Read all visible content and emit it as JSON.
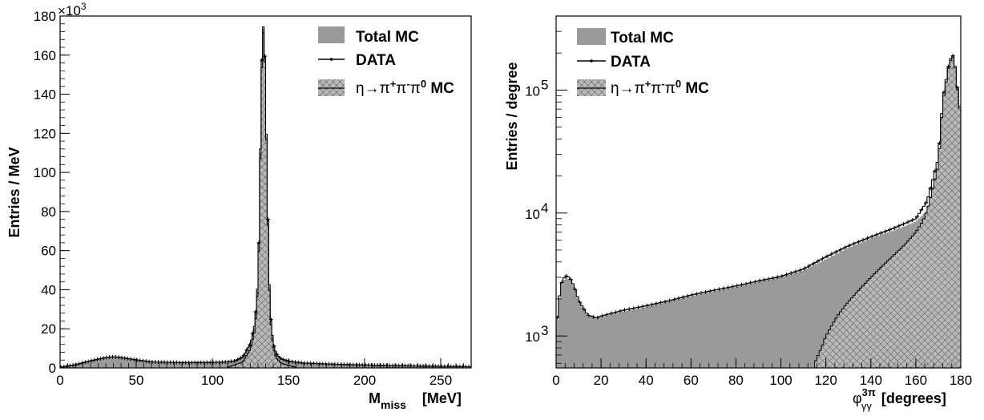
{
  "colors": {
    "total_mc": "#9a9a9a",
    "data": "#000000",
    "eta_mc": "#6e6e6e",
    "frame": "#000000"
  },
  "chart_data": [
    {
      "type": "bar",
      "xlabel_main": "M",
      "xlabel_sub": "miss",
      "xlabel_unit": "[MeV]",
      "ylabel": "Entries / MeV",
      "exponent_label": "×10",
      "exponent_power": "3",
      "xlim": [
        0,
        270
      ],
      "ylim": [
        0,
        180
      ],
      "yscale": "linear",
      "x_ticks": [
        0,
        50,
        100,
        150,
        200,
        250
      ],
      "y_ticks": [
        0,
        20,
        40,
        60,
        80,
        100,
        120,
        140,
        160,
        180
      ],
      "legend": {
        "placement": "top-right",
        "total_label": "Total MC",
        "data_label": "DATA",
        "eta_label_parts": {
          "eta": "η",
          "arrow": "→",
          "pi": "π",
          "plus": "+",
          "minus": "-",
          "zero": "0",
          "suffix": " MC"
        }
      },
      "series": [
        {
          "name": "Total MC",
          "style": "filled-histogram",
          "x": [
            0,
            10,
            20,
            30,
            35,
            40,
            50,
            60,
            80,
            100,
            110,
            115,
            120,
            125,
            128,
            130,
            131,
            132,
            133,
            134,
            135,
            136,
            137,
            138,
            140,
            142,
            145,
            150,
            160,
            180,
            200,
            220,
            250,
            270
          ],
          "y": [
            0.3,
            1.5,
            3.5,
            5.2,
            5.6,
            5.2,
            4.0,
            3.0,
            2.6,
            2.7,
            3.0,
            3.5,
            5.5,
            12,
            22,
            45,
            80,
            140,
            172,
            175,
            142,
            95,
            55,
            28,
            12,
            7,
            4.5,
            3.3,
            2.4,
            1.8,
            1.4,
            1.1,
            0.8,
            0.6
          ]
        },
        {
          "name": "DATA",
          "style": "points",
          "x": [
            0,
            10,
            20,
            30,
            35,
            40,
            50,
            60,
            80,
            100,
            110,
            115,
            120,
            125,
            128,
            130,
            131,
            132,
            133,
            134,
            135,
            136,
            137,
            138,
            140,
            142,
            145,
            150,
            160,
            180,
            200,
            220,
            250,
            270
          ],
          "y": [
            0.3,
            1.6,
            3.6,
            5.3,
            5.7,
            5.3,
            4.1,
            3.1,
            2.7,
            2.8,
            3.1,
            3.6,
            5.6,
            12.5,
            23,
            46,
            82,
            142,
            173,
            176,
            143,
            96,
            56,
            29,
            12.5,
            7.3,
            4.7,
            3.4,
            2.5,
            1.9,
            1.5,
            1.2,
            0.8,
            0.6
          ]
        },
        {
          "name": "η→π+π-π0 MC",
          "style": "hatched-histogram",
          "x": [
            110,
            120,
            125,
            128,
            130,
            131,
            132,
            133,
            134,
            135,
            136,
            137,
            138,
            140,
            142,
            145,
            150,
            155
          ],
          "y": [
            0.3,
            3.0,
            9.5,
            19.5,
            42,
            77,
            137,
            170,
            173,
            140,
            93,
            53,
            26,
            10,
            5,
            2.5,
            1.2,
            0.4
          ]
        }
      ]
    },
    {
      "type": "bar",
      "xlabel_main": "φ",
      "xlabel_sup": "3π",
      "xlabel_sub": "γγ",
      "xlabel_unit": "[degrees]",
      "ylabel": "Entries / degree",
      "xlim": [
        0,
        180
      ],
      "ylim": [
        550,
        400000
      ],
      "yscale": "log",
      "x_ticks": [
        0,
        20,
        40,
        60,
        80,
        100,
        120,
        140,
        160,
        180
      ],
      "y_ticks": [
        {
          "value": 1000,
          "base": "10",
          "power": "3"
        },
        {
          "value": 10000,
          "base": "10",
          "power": "4"
        },
        {
          "value": 100000,
          "base": "10",
          "power": "5"
        }
      ],
      "legend": {
        "placement": "top-left",
        "total_label": "Total MC",
        "data_label": "DATA",
        "eta_label_parts": {
          "eta": "η",
          "arrow": "→",
          "pi": "π",
          "plus": "+",
          "minus": "-",
          "zero": "0",
          "suffix": " MC"
        }
      },
      "series": [
        {
          "name": "Total MC",
          "style": "filled-histogram",
          "x": [
            0,
            2,
            4,
            6,
            8,
            10,
            14,
            18,
            20,
            30,
            40,
            50,
            60,
            70,
            80,
            90,
            100,
            110,
            120,
            130,
            140,
            150,
            160,
            165,
            170,
            172,
            175,
            177,
            178,
            180
          ],
          "y": [
            1100,
            2500,
            3000,
            2900,
            2500,
            1900,
            1450,
            1380,
            1420,
            1580,
            1720,
            1900,
            2100,
            2300,
            2500,
            2750,
            3000,
            3400,
            4200,
            5200,
            6200,
            7200,
            8500,
            10500,
            25000,
            80000,
            170000,
            190000,
            120000,
            60000
          ]
        },
        {
          "name": "DATA",
          "style": "points",
          "x": [
            0,
            2,
            4,
            6,
            8,
            10,
            14,
            18,
            20,
            30,
            40,
            50,
            60,
            70,
            80,
            90,
            100,
            110,
            120,
            130,
            140,
            150,
            160,
            165,
            170,
            172,
            175,
            177,
            178,
            180
          ],
          "y": [
            1150,
            2600,
            3100,
            3000,
            2550,
            1950,
            1480,
            1400,
            1450,
            1620,
            1760,
            1930,
            2150,
            2350,
            2550,
            2800,
            3050,
            3500,
            4400,
            5400,
            6400,
            7500,
            9000,
            12500,
            28000,
            85000,
            175000,
            195000,
            125000,
            62000
          ]
        },
        {
          "name": "η→π+π-π0 MC",
          "style": "hatched-histogram",
          "x": [
            115,
            118,
            120,
            125,
            130,
            135,
            140,
            145,
            150,
            155,
            160,
            163,
            165,
            168,
            170,
            172,
            175,
            177,
            178,
            180
          ],
          "y": [
            600,
            800,
            1000,
            1450,
            1900,
            2400,
            3000,
            3700,
            4500,
            5500,
            7000,
            8500,
            10500,
            17000,
            25000,
            80000,
            170000,
            190000,
            120000,
            60000
          ]
        }
      ]
    }
  ]
}
